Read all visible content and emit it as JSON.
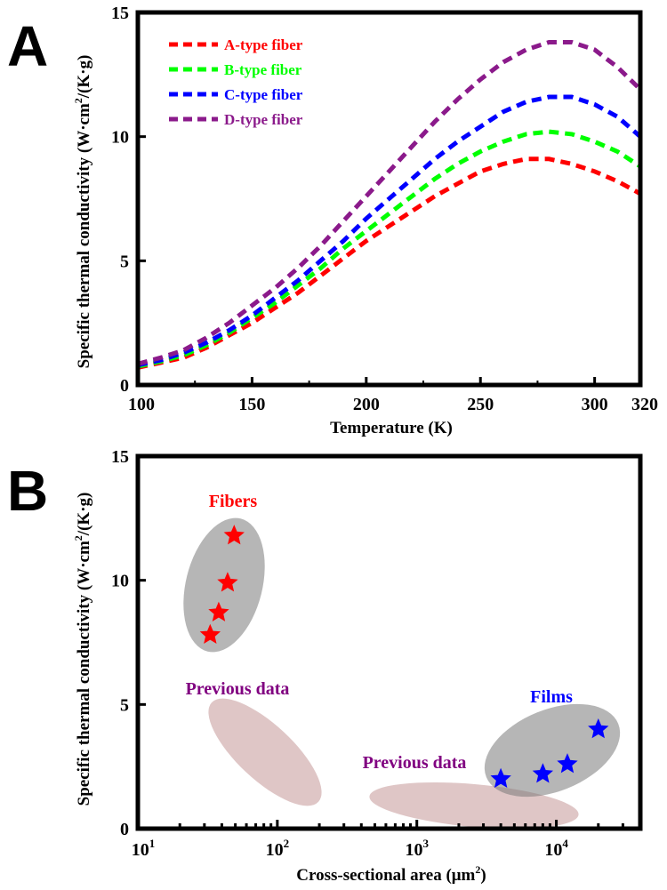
{
  "chart_data": [
    {
      "panel": "A",
      "type": "line",
      "xlabel": "Temperature (K)",
      "ylabel": "Specific thermal conductivity (W·cm²/(K·g)",
      "xlim": [
        100,
        320
      ],
      "ylim": [
        0,
        15
      ],
      "xticks": [
        "100",
        "150",
        "200",
        "250",
        "300",
        "320"
      ],
      "yticks": [
        "0",
        "5",
        "10",
        "15"
      ],
      "legend_position": "top-left",
      "x": [
        100,
        110,
        120,
        130,
        140,
        150,
        160,
        170,
        180,
        190,
        200,
        210,
        220,
        230,
        240,
        250,
        260,
        270,
        280,
        290,
        300,
        310,
        320
      ],
      "series": [
        {
          "name": "A-type fiber",
          "color": "#ff0000",
          "values": [
            0.7,
            0.9,
            1.1,
            1.5,
            2.0,
            2.5,
            3.1,
            3.7,
            4.4,
            5.1,
            5.8,
            6.4,
            7.0,
            7.6,
            8.1,
            8.6,
            8.9,
            9.1,
            9.1,
            8.9,
            8.6,
            8.2,
            7.7
          ]
        },
        {
          "name": "B-type fiber",
          "color": "#00ff00",
          "values": [
            0.75,
            0.95,
            1.2,
            1.6,
            2.1,
            2.7,
            3.3,
            4.0,
            4.7,
            5.5,
            6.2,
            6.9,
            7.6,
            8.3,
            8.9,
            9.4,
            9.8,
            10.1,
            10.2,
            10.1,
            9.8,
            9.4,
            8.8
          ]
        },
        {
          "name": "C-type fiber",
          "color": "#0000ff",
          "values": [
            0.8,
            1.0,
            1.3,
            1.7,
            2.2,
            2.8,
            3.5,
            4.2,
            5.0,
            5.8,
            6.7,
            7.5,
            8.3,
            9.1,
            9.8,
            10.4,
            11.0,
            11.4,
            11.6,
            11.6,
            11.3,
            10.8,
            10.0
          ]
        },
        {
          "name": "D-type fiber",
          "color": "#8b1a8b",
          "values": [
            0.85,
            1.1,
            1.4,
            1.9,
            2.5,
            3.2,
            3.9,
            4.7,
            5.6,
            6.6,
            7.6,
            8.6,
            9.6,
            10.6,
            11.5,
            12.3,
            13.0,
            13.5,
            13.8,
            13.8,
            13.5,
            12.8,
            11.9
          ]
        }
      ]
    },
    {
      "panel": "B",
      "type": "scatter",
      "xlabel": "Cross-sectional area (μm²)",
      "ylabel": "Specific thermal conductivity (W·cm²/(K·g)",
      "xscale": "log",
      "xlim": [
        10,
        40000
      ],
      "ylim": [
        0,
        15
      ],
      "xticks": [
        "10¹",
        "10²",
        "10³",
        "10⁴"
      ],
      "yticks": [
        "0",
        "5",
        "10",
        "15"
      ],
      "series": [
        {
          "name": "Fibers",
          "color": "#ff0000",
          "x": [
            33,
            38,
            44,
            49
          ],
          "y": [
            7.8,
            8.7,
            9.9,
            11.8
          ]
        },
        {
          "name": "Films",
          "color": "#0000ff",
          "x": [
            4000,
            8000,
            12000,
            20000
          ],
          "y": [
            2.0,
            2.2,
            2.6,
            4.0
          ]
        }
      ],
      "regions": [
        {
          "label": "Previous data",
          "color": "#c99a9a",
          "x_range": [
            30,
            200
          ],
          "y_range": [
            1.1,
            4.8
          ]
        },
        {
          "label": "Previous data",
          "color": "#c99a9a",
          "x_range": [
            3000,
            40000
          ],
          "y_range": [
            0.2,
            2.2
          ]
        }
      ],
      "annotations": [
        {
          "text": "Fibers",
          "color": "#ff0000"
        },
        {
          "text": "Films",
          "color": "#0000ff"
        },
        {
          "text": "Previous data",
          "color": "#800080"
        },
        {
          "text": "Previous data",
          "color": "#800080"
        }
      ]
    }
  ]
}
